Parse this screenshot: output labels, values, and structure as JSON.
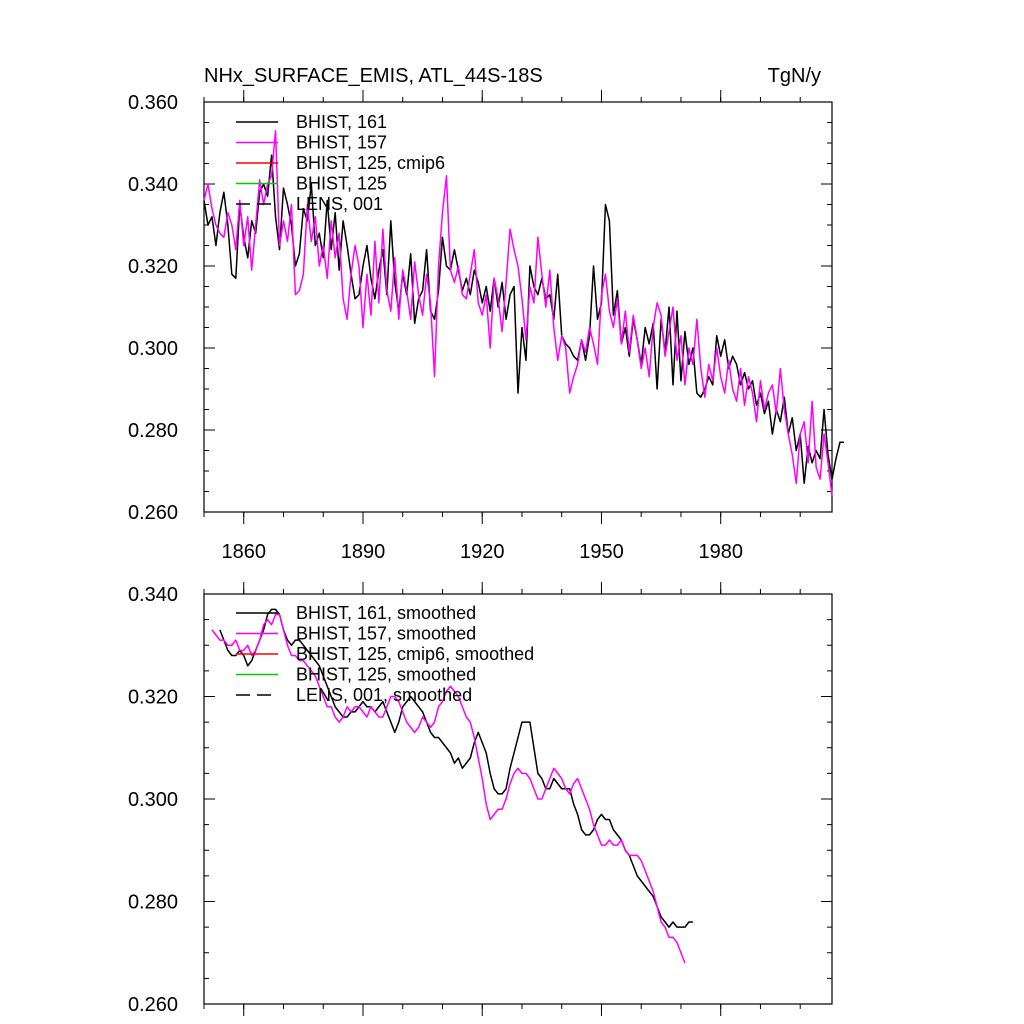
{
  "figure": {
    "title_left": "NHx_SURFACE_EMIS, ATL_44S-18S",
    "title_right": "TgN/y"
  },
  "chart_data": [
    {
      "type": "line",
      "title": "NHx_SURFACE_EMIS, ATL_44S-18S",
      "units": "TgN/y",
      "xlim": [
        1850,
        2008
      ],
      "ylim": [
        0.26,
        0.36
      ],
      "xticks": [
        1860,
        1890,
        1920,
        1950,
        1980
      ],
      "yticks": [
        0.26,
        0.28,
        0.3,
        0.32,
        0.34,
        0.36
      ],
      "ytick_labels": [
        "0.260",
        "0.280",
        "0.300",
        "0.320",
        "0.340",
        "0.360"
      ],
      "legend_position": "top-left",
      "legend": [
        {
          "label": "BHIST, 161",
          "color": "#000000",
          "dash": "solid"
        },
        {
          "label": "BHIST, 157",
          "color": "#ff00ff",
          "dash": "solid"
        },
        {
          "label": "BHIST, 125, cmip6",
          "color": "#ff0000",
          "dash": "solid"
        },
        {
          "label": "BHIST, 125",
          "color": "#00cc00",
          "dash": "solid"
        },
        {
          "label": "LENS, 001",
          "color": "#000000",
          "dash": "dashed"
        }
      ],
      "series": [
        {
          "name": "BHIST, 161",
          "color": "#000000",
          "x_start": 1850,
          "x_step": 1,
          "values": [
            0.336,
            0.33,
            0.332,
            0.325,
            0.333,
            0.338,
            0.33,
            0.318,
            0.317,
            0.335,
            0.327,
            0.322,
            0.331,
            0.328,
            0.338,
            0.34,
            0.337,
            0.347,
            0.332,
            0.324,
            0.339,
            0.335,
            0.33,
            0.32,
            0.323,
            0.334,
            0.331,
            0.34,
            0.325,
            0.328,
            0.322,
            0.336,
            0.324,
            0.333,
            0.319,
            0.331,
            0.325,
            0.318,
            0.312,
            0.313,
            0.32,
            0.325,
            0.317,
            0.312,
            0.319,
            0.324,
            0.313,
            0.331,
            0.316,
            0.309,
            0.318,
            0.313,
            0.323,
            0.306,
            0.312,
            0.314,
            0.324,
            0.309,
            0.307,
            0.314,
            0.327,
            0.32,
            0.319,
            0.324,
            0.319,
            0.314,
            0.317,
            0.313,
            0.319,
            0.316,
            0.311,
            0.315,
            0.309,
            0.317,
            0.31,
            0.316,
            0.307,
            0.313,
            0.315,
            0.289,
            0.305,
            0.297,
            0.32,
            0.315,
            0.313,
            0.317,
            0.312,
            0.313,
            0.307,
            0.318,
            0.303,
            0.301,
            0.3,
            0.298,
            0.297,
            0.302,
            0.297,
            0.303,
            0.32,
            0.307,
            0.311,
            0.335,
            0.331,
            0.308,
            0.314,
            0.301,
            0.305,
            0.298,
            0.307,
            0.302,
            0.296,
            0.305,
            0.301,
            0.306,
            0.29,
            0.307,
            0.299,
            0.31,
            0.291,
            0.309,
            0.292,
            0.304,
            0.296,
            0.3,
            0.289,
            0.288,
            0.29,
            0.293,
            0.291,
            0.303,
            0.298,
            0.302,
            0.295,
            0.298,
            0.296,
            0.291,
            0.294,
            0.29,
            0.292,
            0.286,
            0.289,
            0.284,
            0.287,
            0.279,
            0.285,
            0.282,
            0.288,
            0.279,
            0.283,
            0.275,
            0.279,
            0.267,
            0.276,
            0.272,
            0.275,
            0.273,
            0.285,
            0.274,
            0.268,
            0.273,
            0.277,
            0.277
          ]
        },
        {
          "name": "BHIST, 157",
          "color": "#ff00ff",
          "x_start": 1850,
          "x_step": 1,
          "values": [
            0.336,
            0.34,
            0.334,
            0.33,
            0.328,
            0.327,
            0.333,
            0.33,
            0.324,
            0.336,
            0.325,
            0.332,
            0.319,
            0.33,
            0.341,
            0.335,
            0.34,
            0.342,
            0.353,
            0.325,
            0.331,
            0.326,
            0.335,
            0.313,
            0.314,
            0.318,
            0.335,
            0.326,
            0.332,
            0.32,
            0.325,
            0.317,
            0.331,
            0.322,
            0.328,
            0.312,
            0.307,
            0.318,
            0.325,
            0.32,
            0.305,
            0.318,
            0.308,
            0.326,
            0.311,
            0.329,
            0.314,
            0.309,
            0.322,
            0.307,
            0.319,
            0.314,
            0.307,
            0.321,
            0.313,
            0.308,
            0.318,
            0.311,
            0.293,
            0.32,
            0.333,
            0.342,
            0.319,
            0.316,
            0.32,
            0.313,
            0.312,
            0.318,
            0.324,
            0.311,
            0.308,
            0.313,
            0.3,
            0.317,
            0.312,
            0.304,
            0.316,
            0.329,
            0.324,
            0.32,
            0.312,
            0.302,
            0.315,
            0.311,
            0.327,
            0.318,
            0.31,
            0.319,
            0.305,
            0.297,
            0.303,
            0.3,
            0.289,
            0.293,
            0.296,
            0.302,
            0.299,
            0.305,
            0.301,
            0.296,
            0.313,
            0.318,
            0.309,
            0.305,
            0.312,
            0.301,
            0.309,
            0.299,
            0.308,
            0.302,
            0.295,
            0.3,
            0.293,
            0.305,
            0.311,
            0.308,
            0.298,
            0.304,
            0.31,
            0.297,
            0.303,
            0.291,
            0.3,
            0.296,
            0.307,
            0.295,
            0.288,
            0.296,
            0.292,
            0.3,
            0.293,
            0.289,
            0.297,
            0.29,
            0.287,
            0.295,
            0.286,
            0.293,
            0.289,
            0.282,
            0.292,
            0.285,
            0.289,
            0.291,
            0.284,
            0.295,
            0.285,
            0.279,
            0.274,
            0.267,
            0.279,
            0.282,
            0.272,
            0.287,
            0.271,
            0.268,
            0.279,
            0.272,
            0.264
          ]
        }
      ]
    },
    {
      "type": "line",
      "xlim": [
        1850,
        2008
      ],
      "ylim": [
        0.26,
        0.34
      ],
      "xticks": [
        1860,
        1890,
        1920,
        1950,
        1980
      ],
      "yticks": [
        0.26,
        0.28,
        0.3,
        0.32,
        0.34
      ],
      "ytick_labels": [
        "0.260",
        "0.280",
        "0.300",
        "0.320",
        "0.340"
      ],
      "legend_position": "top-left",
      "legend": [
        {
          "label": "BHIST, 161, smoothed",
          "color": "#000000",
          "dash": "solid"
        },
        {
          "label": "BHIST, 157, smoothed",
          "color": "#ff00ff",
          "dash": "solid"
        },
        {
          "label": "BHIST, 125, cmip6, smoothed",
          "color": "#ff0000",
          "dash": "solid"
        },
        {
          "label": "BHIST, 125, smoothed",
          "color": "#00cc00",
          "dash": "solid"
        },
        {
          "label": "LENS, 001, smoothed",
          "color": "#000000",
          "dash": "dashed"
        }
      ],
      "series": [
        {
          "name": "BHIST, 161, smoothed",
          "color": "#000000",
          "x_start": 1854,
          "x_step": 1,
          "values": [
            0.333,
            0.331,
            0.329,
            0.328,
            0.328,
            0.329,
            0.328,
            0.326,
            0.327,
            0.329,
            0.331,
            0.333,
            0.336,
            0.337,
            0.337,
            0.336,
            0.333,
            0.331,
            0.33,
            0.331,
            0.331,
            0.33,
            0.329,
            0.328,
            0.327,
            0.326,
            0.324,
            0.322,
            0.32,
            0.318,
            0.317,
            0.316,
            0.316,
            0.317,
            0.317,
            0.318,
            0.319,
            0.318,
            0.318,
            0.317,
            0.318,
            0.319,
            0.317,
            0.315,
            0.313,
            0.315,
            0.318,
            0.319,
            0.32,
            0.319,
            0.318,
            0.317,
            0.315,
            0.313,
            0.312,
            0.312,
            0.311,
            0.31,
            0.309,
            0.307,
            0.308,
            0.306,
            0.307,
            0.308,
            0.311,
            0.313,
            0.311,
            0.309,
            0.305,
            0.302,
            0.301,
            0.301,
            0.302,
            0.306,
            0.309,
            0.312,
            0.315,
            0.315,
            0.315,
            0.31,
            0.305,
            0.304,
            0.302,
            0.302,
            0.304,
            0.303,
            0.302,
            0.302,
            0.302,
            0.299,
            0.297,
            0.294,
            0.293,
            0.293,
            0.294,
            0.296,
            0.297,
            0.296,
            0.296,
            0.294,
            0.293,
            0.292,
            0.29,
            0.289,
            0.287,
            0.285,
            0.284,
            0.283,
            0.282,
            0.281,
            0.279,
            0.277,
            0.276,
            0.275,
            0.276,
            0.275,
            0.275,
            0.275,
            0.276,
            0.276
          ]
        },
        {
          "name": "BHIST, 157, smoothed",
          "color": "#ff00ff",
          "x_start": 1852,
          "x_step": 1,
          "values": [
            0.333,
            0.332,
            0.331,
            0.331,
            0.33,
            0.33,
            0.331,
            0.329,
            0.329,
            0.33,
            0.328,
            0.329,
            0.331,
            0.334,
            0.335,
            0.334,
            0.336,
            0.336,
            0.333,
            0.33,
            0.328,
            0.328,
            0.327,
            0.327,
            0.326,
            0.325,
            0.324,
            0.322,
            0.32,
            0.318,
            0.318,
            0.316,
            0.315,
            0.316,
            0.318,
            0.317,
            0.318,
            0.318,
            0.317,
            0.316,
            0.318,
            0.317,
            0.316,
            0.316,
            0.318,
            0.32,
            0.32,
            0.319,
            0.317,
            0.315,
            0.314,
            0.313,
            0.314,
            0.316,
            0.315,
            0.314,
            0.315,
            0.318,
            0.319,
            0.321,
            0.322,
            0.321,
            0.32,
            0.318,
            0.316,
            0.315,
            0.312,
            0.308,
            0.304,
            0.299,
            0.296,
            0.297,
            0.298,
            0.298,
            0.3,
            0.303,
            0.305,
            0.306,
            0.305,
            0.305,
            0.304,
            0.302,
            0.3,
            0.3,
            0.302,
            0.304,
            0.306,
            0.305,
            0.304,
            0.302,
            0.301,
            0.303,
            0.304,
            0.302,
            0.3,
            0.298,
            0.295,
            0.293,
            0.291,
            0.291,
            0.292,
            0.291,
            0.291,
            0.292,
            0.29,
            0.289,
            0.289,
            0.289,
            0.288,
            0.286,
            0.284,
            0.282,
            0.279,
            0.276,
            0.275,
            0.273,
            0.273,
            0.272,
            0.27,
            0.268
          ]
        }
      ]
    }
  ]
}
